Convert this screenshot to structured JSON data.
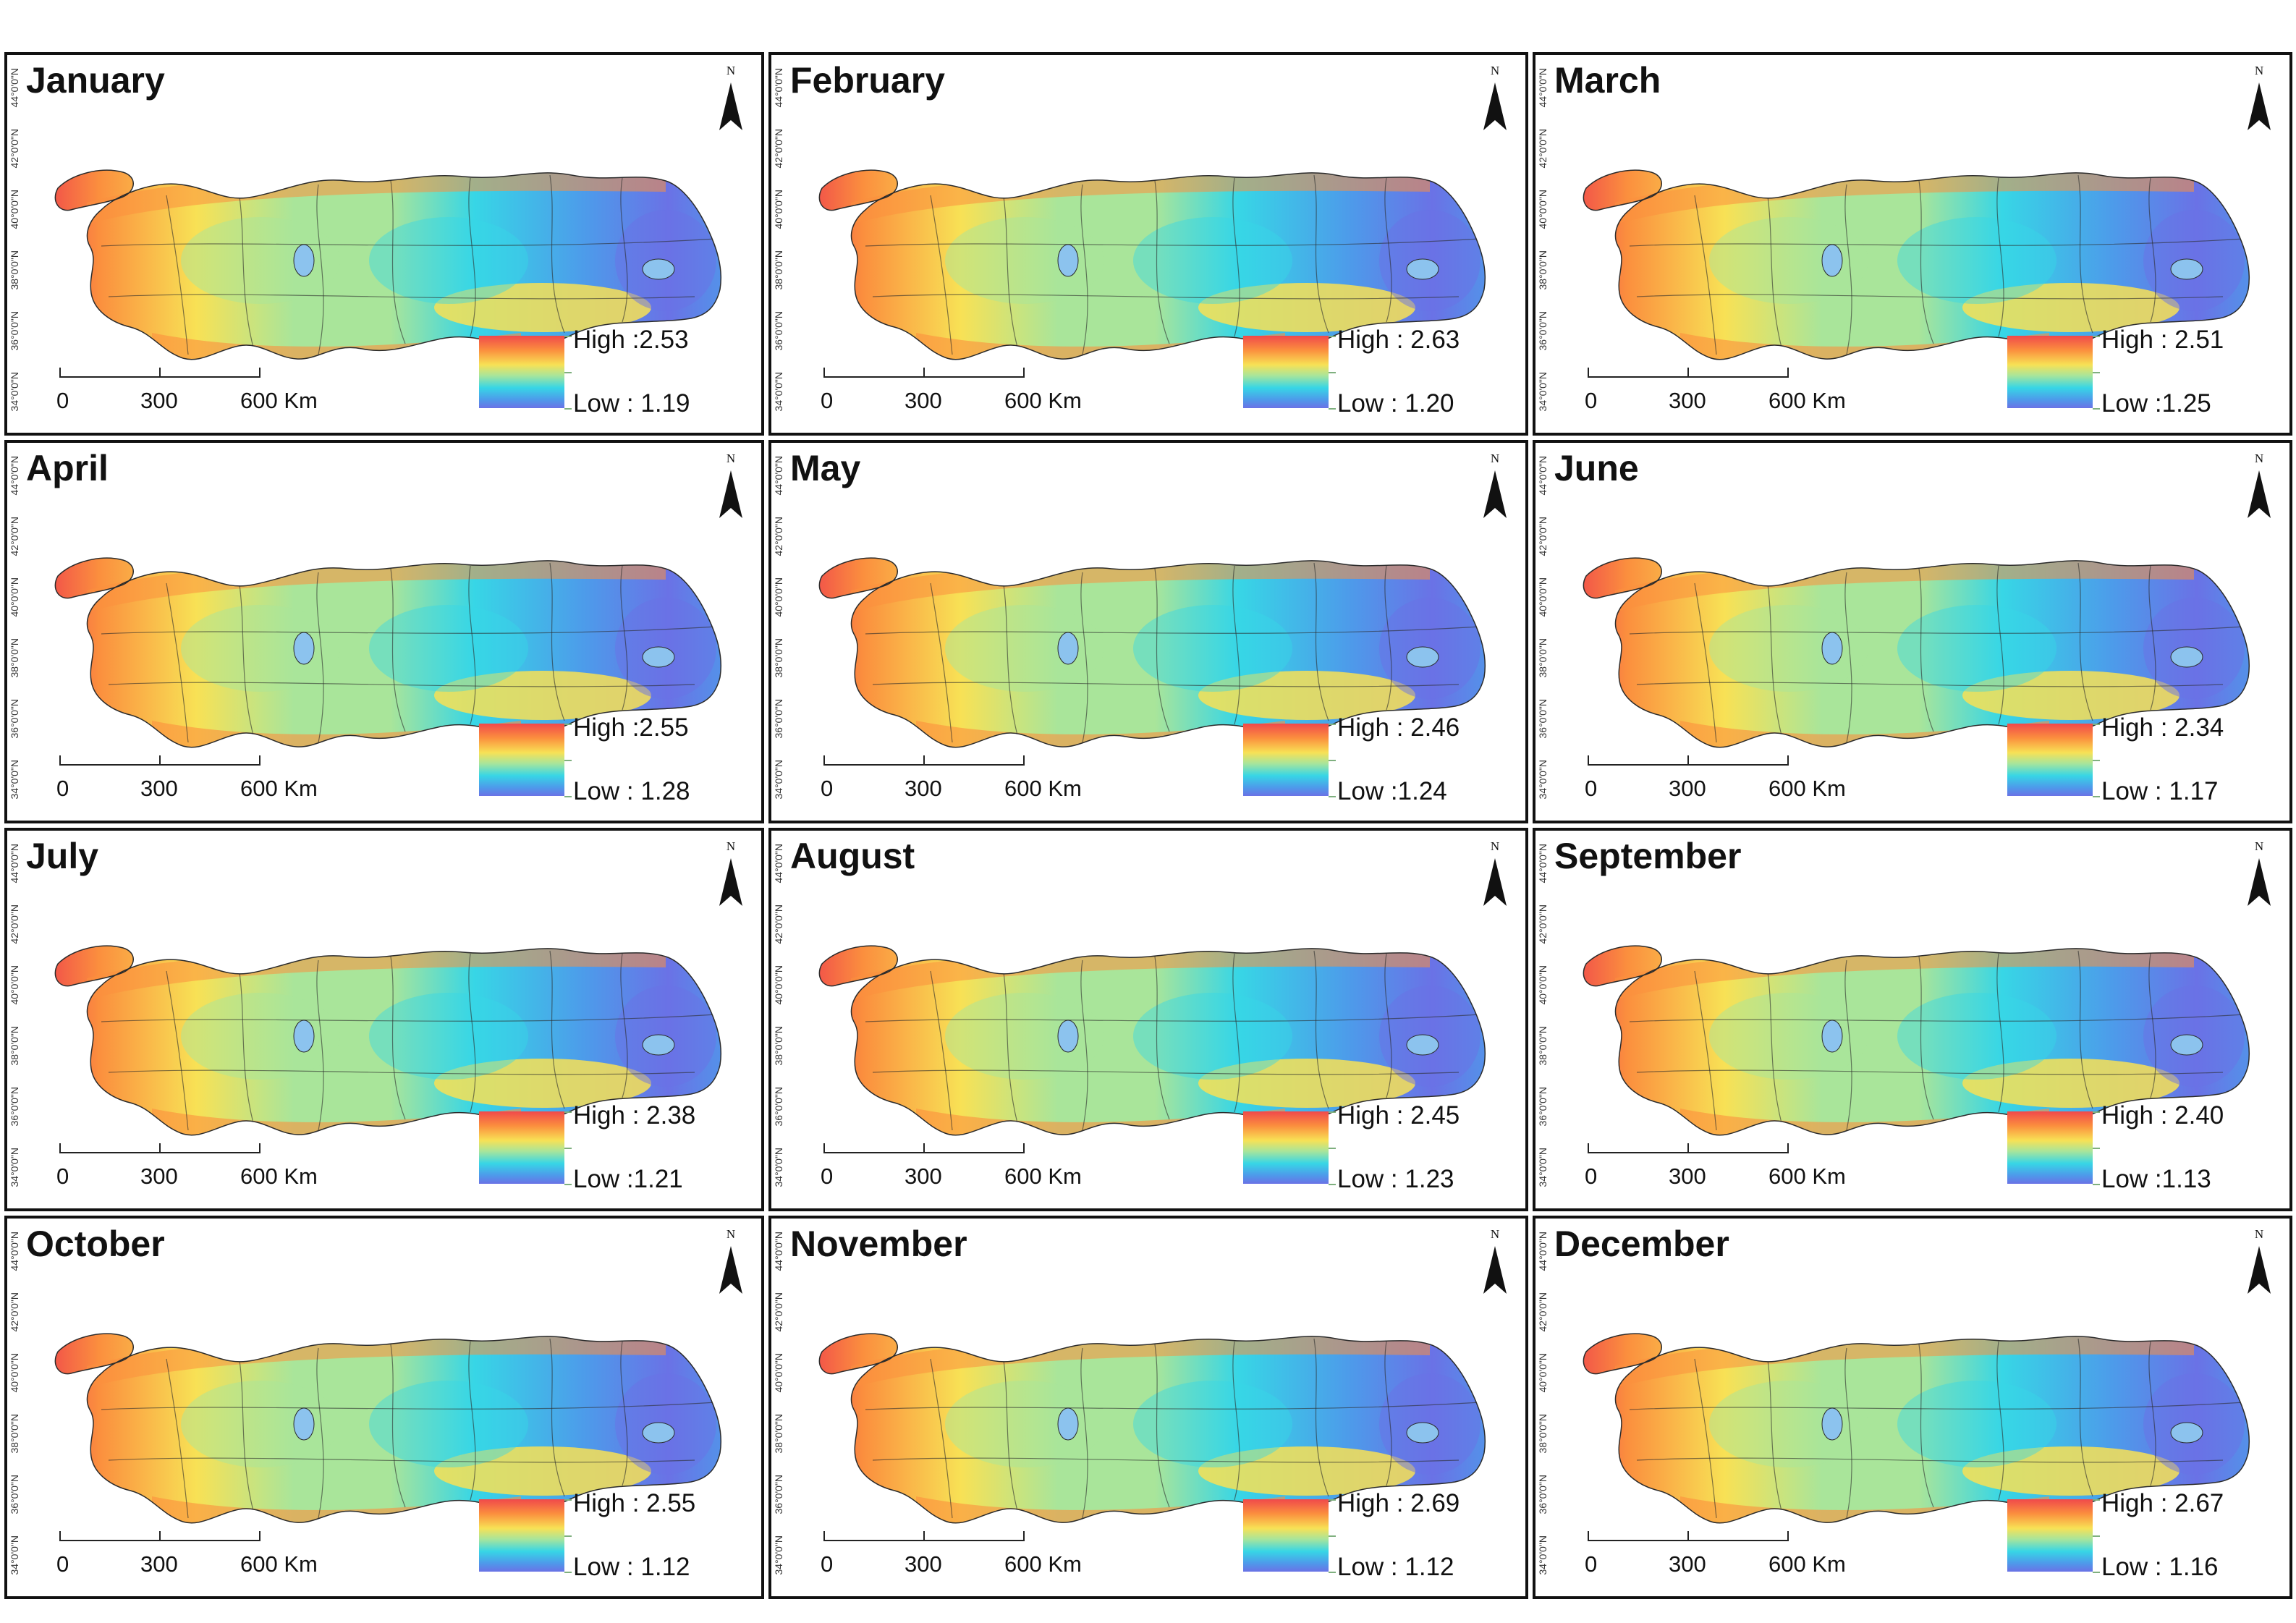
{
  "figure": {
    "panels": [
      {
        "month": "January",
        "high_label": "High :2.53",
        "low_label": "Low : 1.19",
        "high": 2.53,
        "low": 1.19
      },
      {
        "month": "February",
        "high_label": "High : 2.63",
        "low_label": "Low : 1.20",
        "high": 2.63,
        "low": 1.2
      },
      {
        "month": "March",
        "high_label": "High : 2.51",
        "low_label": "Low :1.25",
        "high": 2.51,
        "low": 1.25
      },
      {
        "month": "April",
        "high_label": "High :2.55",
        "low_label": "Low : 1.28",
        "high": 2.55,
        "low": 1.28
      },
      {
        "month": "May",
        "high_label": "High : 2.46",
        "low_label": "Low :1.24",
        "high": 2.46,
        "low": 1.24
      },
      {
        "month": "June",
        "high_label": "High : 2.34",
        "low_label": "Low : 1.17",
        "high": 2.34,
        "low": 1.17
      },
      {
        "month": "July",
        "high_label": "High : 2.38",
        "low_label": "Low :1.21",
        "high": 2.38,
        "low": 1.21
      },
      {
        "month": "August",
        "high_label": "High : 2.45",
        "low_label": "Low : 1.23",
        "high": 2.45,
        "low": 1.23
      },
      {
        "month": "September",
        "high_label": "High : 2.40",
        "low_label": "Low :1.13",
        "high": 2.4,
        "low": 1.13
      },
      {
        "month": "October",
        "high_label": "High : 2.55",
        "low_label": "Low : 1.12",
        "high": 2.55,
        "low": 1.12
      },
      {
        "month": "November",
        "high_label": "High : 2.69",
        "low_label": "Low : 1.12",
        "high": 2.69,
        "low": 1.12
      },
      {
        "month": "December",
        "high_label": "High : 2.67",
        "low_label": "Low : 1.16",
        "high": 2.67,
        "low": 1.16
      }
    ],
    "scale_bar": {
      "labels": [
        "0",
        "300",
        "600 Km"
      ]
    },
    "north_label": "N",
    "latitude_labels": [
      "44°0'0\"N",
      "42°0'0\"N",
      "40°0'0\"N",
      "38°0'0\"N",
      "36°0'0\"N",
      "34°0'0\"N"
    ],
    "colors": {
      "high": "#f0494b",
      "orange": "#fb8f3e",
      "yellow": "#f8e155",
      "light_green": "#a9e59a",
      "cyan": "#37d6e6",
      "blue": "#4d9bea",
      "low": "#6a72e6",
      "boundary": "#2b2b2b",
      "lake": "#8cc3ee"
    }
  }
}
